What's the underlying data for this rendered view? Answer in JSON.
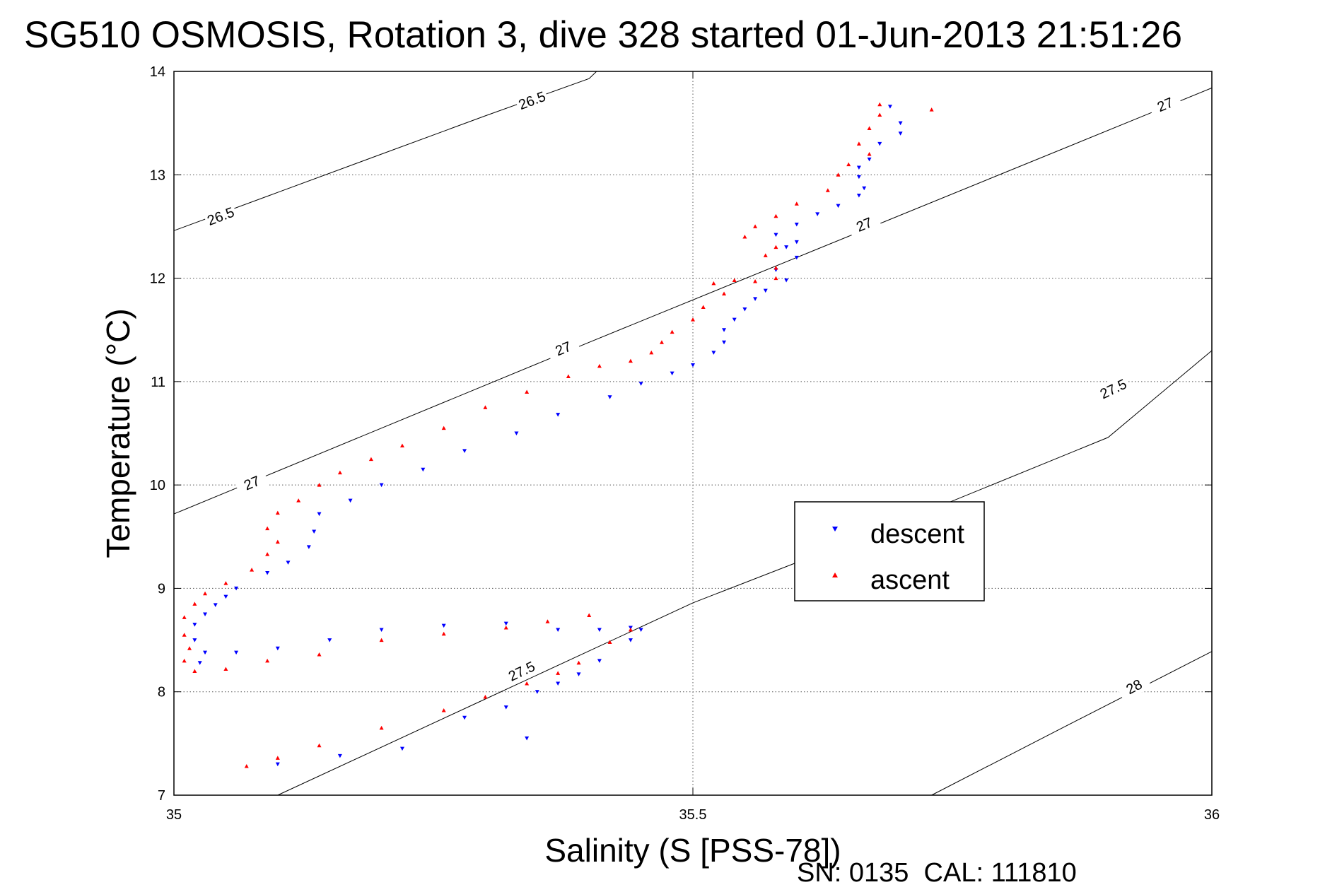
{
  "chart_data": {
    "type": "scatter",
    "title": "SG510 OSMOSIS, Rotation 3, dive 328 started 01-Jun-2013 21:51:26",
    "xlabel": "Salinity (S [PSS-78])",
    "ylabel": "Temperature (°C)",
    "xlim": [
      35,
      36
    ],
    "ylim": [
      7,
      14
    ],
    "x_ticks": [
      "35",
      "35.5",
      "36"
    ],
    "y_ticks": [
      "7",
      "8",
      "9",
      "10",
      "11",
      "12",
      "13",
      "14"
    ],
    "grid": true,
    "legend_position": "center-right",
    "footer": "SN: 0135  CAL: 111810",
    "contours": [
      {
        "label": "26.5",
        "points": [
          [
            35.0,
            12.46
          ],
          [
            35.1,
            12.83
          ],
          [
            35.2,
            13.2
          ],
          [
            35.3,
            13.57
          ],
          [
            35.4,
            13.93
          ],
          [
            35.4072,
            14.0
          ]
        ],
        "label_positions": [
          [
            35.045,
            12.6
          ],
          [
            35.345,
            13.72
          ]
        ]
      },
      {
        "label": "27",
        "points": [
          [
            35.0,
            9.72
          ],
          [
            35.2,
            10.55
          ],
          [
            35.4,
            11.38
          ],
          [
            35.6,
            12.2
          ],
          [
            35.8,
            13.02
          ],
          [
            36.0,
            13.84
          ]
        ],
        "label_positions": [
          [
            35.075,
            10.02
          ],
          [
            35.375,
            11.32
          ],
          [
            35.665,
            12.52
          ],
          [
            35.955,
            13.68
          ]
        ]
      },
      {
        "label": "27.5",
        "points": [
          [
            35.1,
            7.0
          ],
          [
            35.3,
            7.93
          ],
          [
            35.5,
            8.86
          ],
          [
            35.7,
            9.64
          ],
          [
            35.9,
            10.46
          ],
          [
            36.0,
            11.3
          ]
        ],
        "label_positions": [
          [
            35.335,
            8.2
          ],
          [
            35.905,
            10.93
          ]
        ]
      },
      {
        "label": "28",
        "points": [
          [
            35.73,
            7.0
          ],
          [
            35.85,
            7.62
          ],
          [
            36.0,
            8.39
          ]
        ],
        "label_positions": [
          [
            35.925,
            8.05
          ]
        ]
      }
    ],
    "series": [
      {
        "name": "descent",
        "color": "#0000ff",
        "marker": "down-triangle",
        "points": [
          [
            35.69,
            13.66
          ],
          [
            35.7,
            13.5
          ],
          [
            35.7,
            13.4
          ],
          [
            35.68,
            13.3
          ],
          [
            35.67,
            13.15
          ],
          [
            35.66,
            13.07
          ],
          [
            35.66,
            12.98
          ],
          [
            35.665,
            12.87
          ],
          [
            35.66,
            12.8
          ],
          [
            35.64,
            12.7
          ],
          [
            35.62,
            12.62
          ],
          [
            35.6,
            12.52
          ],
          [
            35.58,
            12.42
          ],
          [
            35.6,
            12.35
          ],
          [
            35.59,
            12.3
          ],
          [
            35.6,
            12.2
          ],
          [
            35.58,
            12.08
          ],
          [
            35.59,
            11.98
          ],
          [
            35.57,
            11.88
          ],
          [
            35.56,
            11.8
          ],
          [
            35.55,
            11.7
          ],
          [
            35.54,
            11.6
          ],
          [
            35.53,
            11.5
          ],
          [
            35.53,
            11.38
          ],
          [
            35.52,
            11.28
          ],
          [
            35.5,
            11.16
          ],
          [
            35.48,
            11.08
          ],
          [
            35.45,
            10.98
          ],
          [
            35.42,
            10.85
          ],
          [
            35.37,
            10.68
          ],
          [
            35.33,
            10.5
          ],
          [
            35.28,
            10.33
          ],
          [
            35.24,
            10.15
          ],
          [
            35.2,
            10.0
          ],
          [
            35.17,
            9.85
          ],
          [
            35.14,
            9.72
          ],
          [
            35.135,
            9.55
          ],
          [
            35.13,
            9.4
          ],
          [
            35.11,
            9.25
          ],
          [
            35.09,
            9.15
          ],
          [
            35.06,
            9.0
          ],
          [
            35.05,
            8.92
          ],
          [
            35.04,
            8.84
          ],
          [
            35.03,
            8.75
          ],
          [
            35.02,
            8.65
          ],
          [
            35.02,
            8.5
          ],
          [
            35.03,
            8.38
          ],
          [
            35.025,
            8.28
          ],
          [
            35.06,
            8.38
          ],
          [
            35.1,
            8.42
          ],
          [
            35.15,
            8.5
          ],
          [
            35.2,
            8.6
          ],
          [
            35.26,
            8.64
          ],
          [
            35.32,
            8.66
          ],
          [
            35.37,
            8.6
          ],
          [
            35.41,
            8.6
          ],
          [
            35.44,
            8.62
          ],
          [
            35.45,
            8.6
          ],
          [
            35.44,
            8.5
          ],
          [
            35.41,
            8.3
          ],
          [
            35.39,
            8.17
          ],
          [
            35.37,
            8.08
          ],
          [
            35.35,
            8.0
          ],
          [
            35.32,
            7.85
          ],
          [
            35.28,
            7.75
          ],
          [
            35.34,
            7.55
          ],
          [
            35.22,
            7.45
          ],
          [
            35.16,
            7.38
          ],
          [
            35.1,
            7.3
          ]
        ]
      },
      {
        "name": "ascent",
        "color": "#ff0000",
        "marker": "up-triangle",
        "points": [
          [
            35.73,
            13.63
          ],
          [
            35.68,
            13.68
          ],
          [
            35.68,
            13.58
          ],
          [
            35.67,
            13.45
          ],
          [
            35.66,
            13.3
          ],
          [
            35.67,
            13.2
          ],
          [
            35.65,
            13.1
          ],
          [
            35.64,
            13.0
          ],
          [
            35.63,
            12.85
          ],
          [
            35.6,
            12.72
          ],
          [
            35.58,
            12.6
          ],
          [
            35.56,
            12.5
          ],
          [
            35.55,
            12.4
          ],
          [
            35.58,
            12.3
          ],
          [
            35.57,
            12.22
          ],
          [
            35.58,
            12.1
          ],
          [
            35.58,
            12.0
          ],
          [
            35.56,
            11.97
          ],
          [
            35.54,
            11.98
          ],
          [
            35.52,
            11.95
          ],
          [
            35.53,
            11.85
          ],
          [
            35.51,
            11.72
          ],
          [
            35.5,
            11.6
          ],
          [
            35.48,
            11.48
          ],
          [
            35.47,
            11.38
          ],
          [
            35.46,
            11.28
          ],
          [
            35.44,
            11.2
          ],
          [
            35.41,
            11.15
          ],
          [
            35.38,
            11.05
          ],
          [
            35.34,
            10.9
          ],
          [
            35.3,
            10.75
          ],
          [
            35.26,
            10.55
          ],
          [
            35.22,
            10.38
          ],
          [
            35.19,
            10.25
          ],
          [
            35.16,
            10.12
          ],
          [
            35.14,
            10.0
          ],
          [
            35.12,
            9.85
          ],
          [
            35.1,
            9.73
          ],
          [
            35.09,
            9.58
          ],
          [
            35.1,
            9.45
          ],
          [
            35.09,
            9.33
          ],
          [
            35.075,
            9.18
          ],
          [
            35.05,
            9.05
          ],
          [
            35.03,
            8.95
          ],
          [
            35.02,
            8.85
          ],
          [
            35.01,
            8.72
          ],
          [
            35.01,
            8.55
          ],
          [
            35.015,
            8.42
          ],
          [
            35.01,
            8.3
          ],
          [
            35.02,
            8.2
          ],
          [
            35.05,
            8.22
          ],
          [
            35.09,
            8.3
          ],
          [
            35.14,
            8.36
          ],
          [
            35.2,
            8.5
          ],
          [
            35.26,
            8.56
          ],
          [
            35.32,
            8.62
          ],
          [
            35.36,
            8.68
          ],
          [
            35.4,
            8.74
          ],
          [
            35.44,
            8.6
          ],
          [
            35.42,
            8.48
          ],
          [
            35.39,
            8.28
          ],
          [
            35.37,
            8.18
          ],
          [
            35.34,
            8.08
          ],
          [
            35.3,
            7.95
          ],
          [
            35.26,
            7.82
          ],
          [
            35.2,
            7.65
          ],
          [
            35.14,
            7.48
          ],
          [
            35.1,
            7.36
          ],
          [
            35.07,
            7.28
          ]
        ]
      }
    ]
  }
}
